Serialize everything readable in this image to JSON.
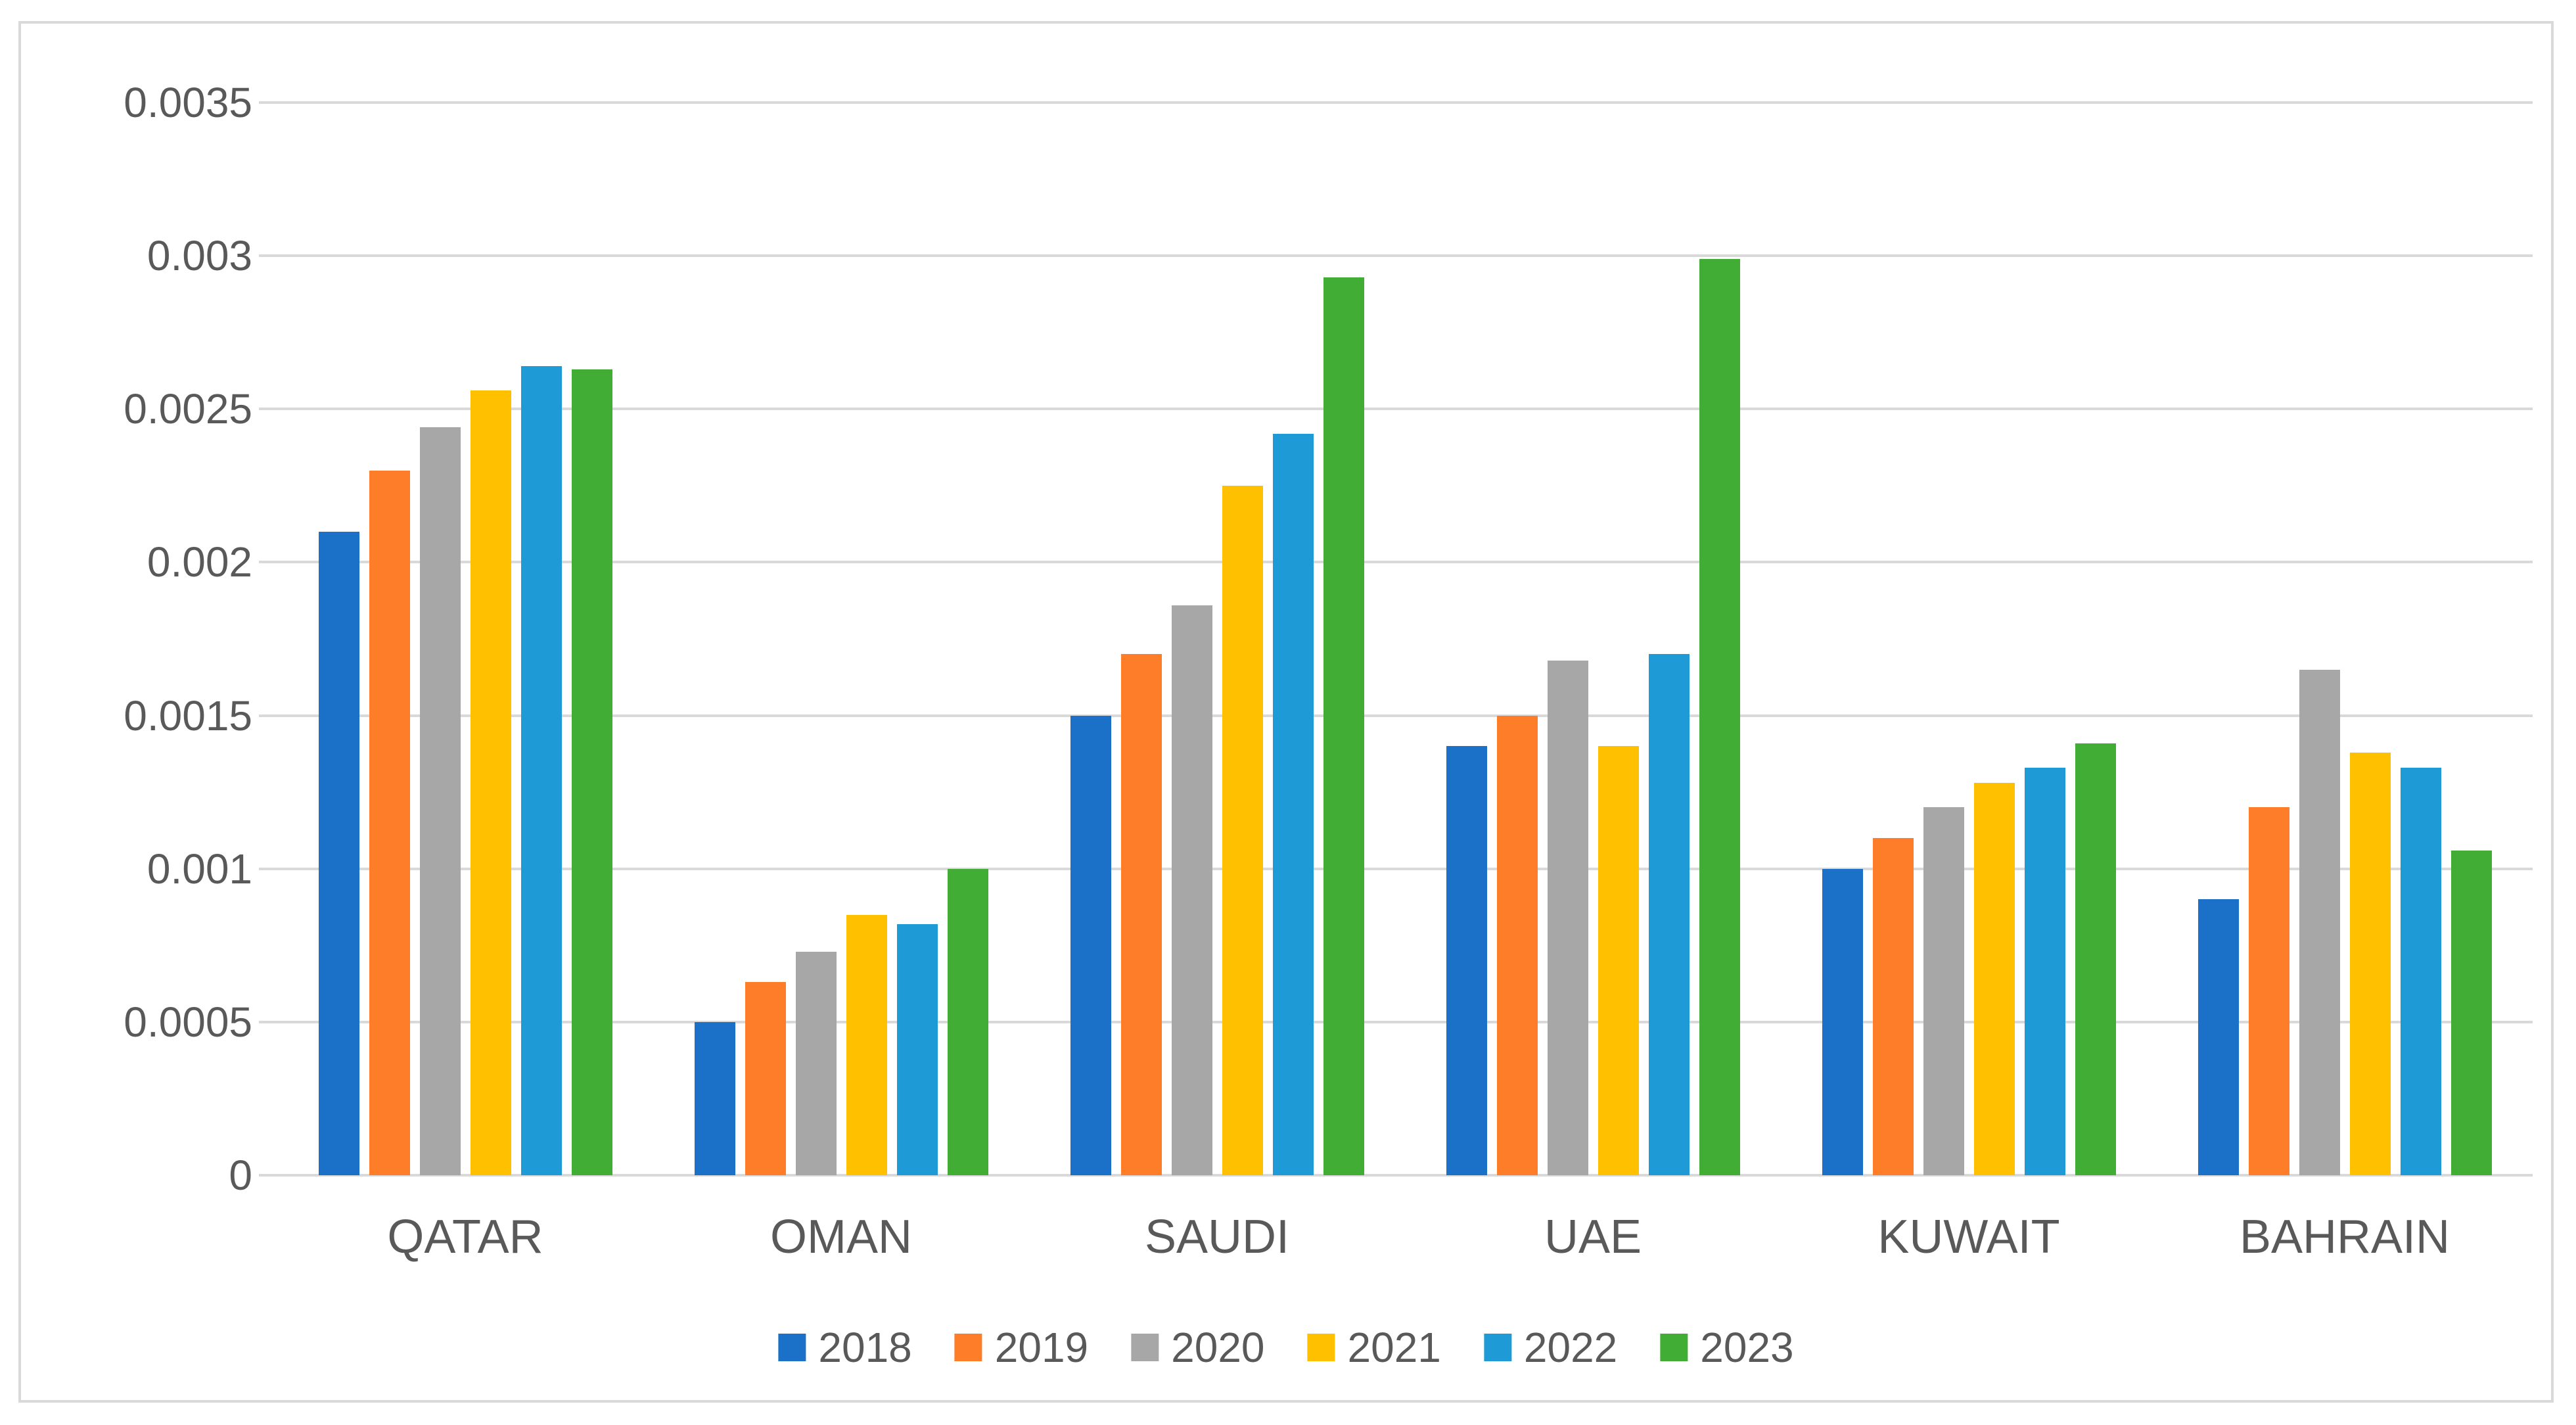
{
  "chart_data": {
    "type": "bar",
    "title": "",
    "categories": [
      "QATAR",
      "OMAN",
      "SAUDI",
      "UAE",
      "KUWAIT",
      "BAHRAIN"
    ],
    "series": [
      {
        "name": "2018",
        "color": "#1B71C8",
        "values": [
          0.0021,
          0.0005,
          0.0015,
          0.0014,
          0.001,
          0.0009
        ]
      },
      {
        "name": "2019",
        "color": "#FD7D28",
        "values": [
          0.0023,
          0.00063,
          0.0017,
          0.0015,
          0.0011,
          0.0012
        ]
      },
      {
        "name": "2020",
        "color": "#A7A7A7",
        "values": [
          0.00244,
          0.00073,
          0.00186,
          0.00168,
          0.0012,
          0.00165
        ]
      },
      {
        "name": "2021",
        "color": "#FFC000",
        "values": [
          0.00256,
          0.00085,
          0.00225,
          0.0014,
          0.00128,
          0.00138
        ]
      },
      {
        "name": "2022",
        "color": "#1E9BD7",
        "values": [
          0.00264,
          0.00082,
          0.00242,
          0.0017,
          0.00133,
          0.00133
        ]
      },
      {
        "name": "2023",
        "color": "#41AD35",
        "values": [
          0.00263,
          0.001,
          0.00293,
          0.00299,
          0.00141,
          0.00106
        ]
      }
    ],
    "y_ticks": [
      0,
      0.0005,
      0.001,
      0.0015,
      0.002,
      0.0025,
      0.003,
      0.0035
    ],
    "y_tick_labels": [
      "0",
      "0.0005",
      "0.001",
      "0.0015",
      "0.002",
      "0.0025",
      "0.003",
      "0.0035"
    ],
    "ylim": [
      0,
      0.0035
    ],
    "grid": true,
    "legend_position": "bottom",
    "colors": {
      "axis_text": "#595959",
      "gridline": "#D9D9D9",
      "frame_border": "#D9D9D9",
      "background": "#FFFFFF"
    }
  }
}
